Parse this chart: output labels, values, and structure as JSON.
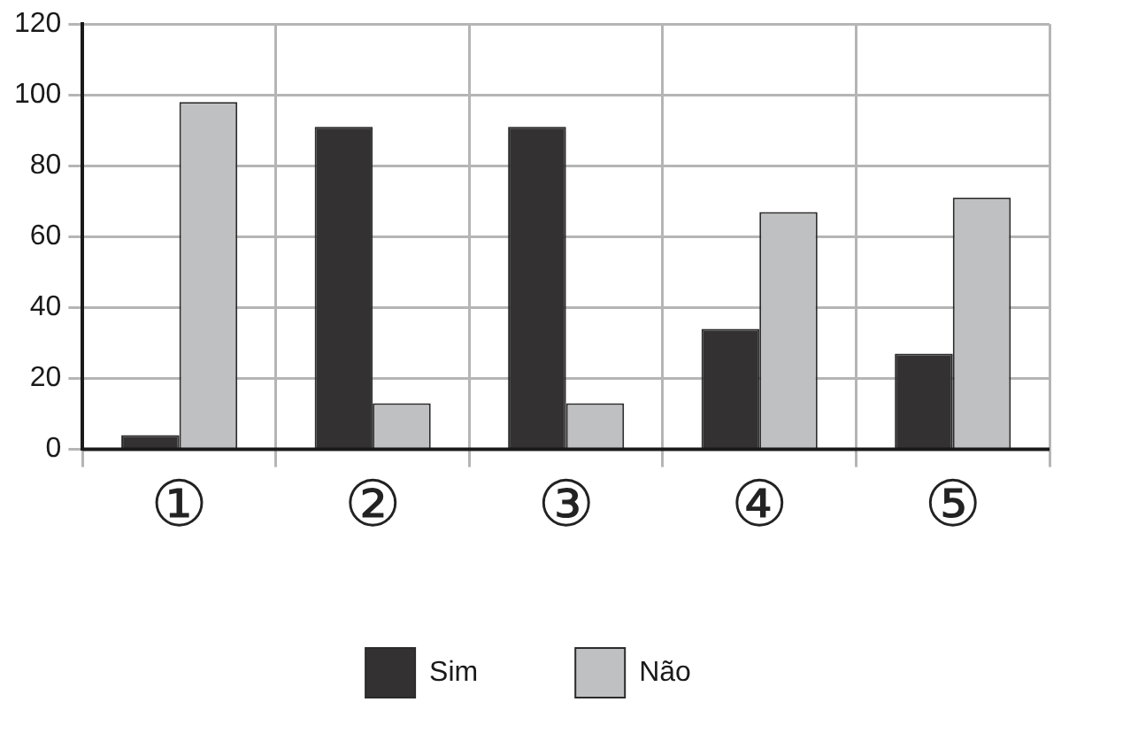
{
  "chart_data": {
    "type": "bar",
    "categories": [
      "①",
      "②",
      "③",
      "④",
      "⑤"
    ],
    "series": [
      {
        "name": "Sim",
        "color": "#333132",
        "values": [
          4,
          91,
          91,
          34,
          27
        ]
      },
      {
        "name": "Não",
        "color": "#bfc0c2",
        "values": [
          98,
          13,
          13,
          67,
          71
        ]
      }
    ],
    "ylim": [
      0,
      120
    ],
    "yticks": [
      0,
      20,
      40,
      60,
      80,
      100,
      120
    ],
    "grid": true,
    "legend": "bottom"
  }
}
